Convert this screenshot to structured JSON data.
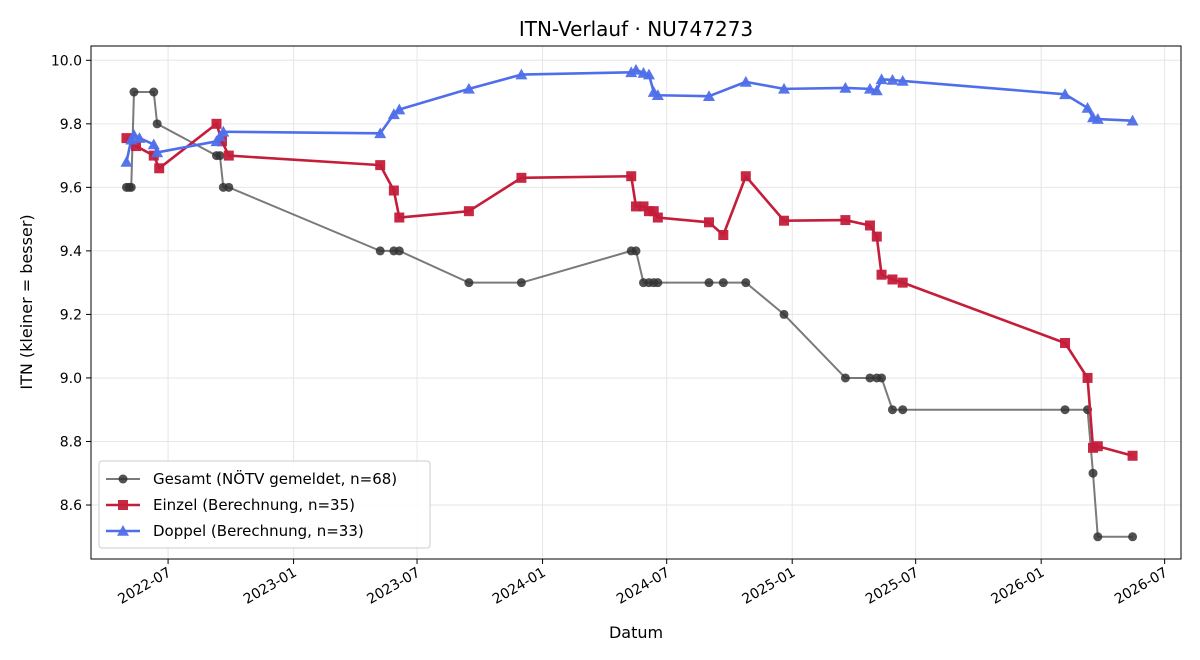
{
  "chart_data": {
    "type": "line",
    "title": "ITN-Verlauf · NU747273",
    "xlabel": "Datum",
    "ylabel": "ITN  (kleiner = besser)",
    "x_axis_type": "date",
    "xlim": [
      "2022-03-10",
      "2026-07-25"
    ],
    "ylim": [
      8.43,
      10.045
    ],
    "x_ticks": [
      "2022-07-01",
      "2023-01-01",
      "2023-07-01",
      "2024-01-01",
      "2024-07-01",
      "2025-01-01",
      "2025-07-01",
      "2026-01-01",
      "2026-07-01"
    ],
    "x_tick_labels": [
      "2022-07",
      "2023-01",
      "2023-07",
      "2024-01",
      "2024-07",
      "2025-01",
      "2025-07",
      "2026-01",
      "2026-07"
    ],
    "y_ticks": [
      8.6,
      8.8,
      9.0,
      9.2,
      9.4,
      9.6,
      9.8,
      10.0
    ],
    "y_tick_labels": [
      "8.6",
      "8.8",
      "9.0",
      "9.2",
      "9.4",
      "9.6",
      "9.8",
      "10.0"
    ],
    "grid": true,
    "legend_position": "lower-left",
    "series": [
      {
        "name": "Gesamt (NÖTV gemeldet, n=68)",
        "color": "#333333",
        "marker": "circle",
        "points": [
          [
            "2022-05-01",
            9.6
          ],
          [
            "2022-05-05",
            9.6
          ],
          [
            "2022-05-08",
            9.6
          ],
          [
            "2022-05-12",
            9.9
          ],
          [
            "2022-06-10",
            9.9
          ],
          [
            "2022-06-15",
            9.8
          ],
          [
            "2022-09-10",
            9.7
          ],
          [
            "2022-09-15",
            9.7
          ],
          [
            "2022-09-20",
            9.6
          ],
          [
            "2022-09-28",
            9.6
          ],
          [
            "2023-05-08",
            9.4
          ],
          [
            "2023-05-28",
            9.4
          ],
          [
            "2023-06-05",
            9.4
          ],
          [
            "2023-09-15",
            9.3
          ],
          [
            "2023-12-01",
            9.3
          ],
          [
            "2024-05-10",
            9.4
          ],
          [
            "2024-05-17",
            9.4
          ],
          [
            "2024-05-28",
            9.3
          ],
          [
            "2024-06-05",
            9.3
          ],
          [
            "2024-06-12",
            9.3
          ],
          [
            "2024-06-18",
            9.3
          ],
          [
            "2024-09-01",
            9.3
          ],
          [
            "2024-09-22",
            9.3
          ],
          [
            "2024-10-25",
            9.3
          ],
          [
            "2024-12-20",
            9.2
          ],
          [
            "2025-03-20",
            9.0
          ],
          [
            "2025-04-25",
            9.0
          ],
          [
            "2025-05-05",
            9.0
          ],
          [
            "2025-05-12",
            9.0
          ],
          [
            "2025-05-28",
            8.9
          ],
          [
            "2025-06-12",
            8.9
          ],
          [
            "2026-02-05",
            8.9
          ],
          [
            "2026-03-10",
            8.9
          ],
          [
            "2026-03-18",
            8.7
          ],
          [
            "2026-03-25",
            8.5
          ],
          [
            "2026-05-15",
            8.5
          ]
        ]
      },
      {
        "name": "Einzel (Berechnung, n=35)",
        "color": "#c41e3a",
        "marker": "square",
        "points": [
          [
            "2022-05-01",
            9.755
          ],
          [
            "2022-05-15",
            9.73
          ],
          [
            "2022-06-10",
            9.7
          ],
          [
            "2022-06-18",
            9.66
          ],
          [
            "2022-09-10",
            9.8
          ],
          [
            "2022-09-18",
            9.745
          ],
          [
            "2022-09-28",
            9.7
          ],
          [
            "2023-05-08",
            9.67
          ],
          [
            "2023-05-28",
            9.59
          ],
          [
            "2023-06-05",
            9.505
          ],
          [
            "2023-09-15",
            9.525
          ],
          [
            "2023-12-01",
            9.63
          ],
          [
            "2024-05-10",
            9.635
          ],
          [
            "2024-05-17",
            9.54
          ],
          [
            "2024-05-28",
            9.54
          ],
          [
            "2024-06-05",
            9.525
          ],
          [
            "2024-06-12",
            9.525
          ],
          [
            "2024-06-18",
            9.505
          ],
          [
            "2024-09-01",
            9.49
          ],
          [
            "2024-09-22",
            9.45
          ],
          [
            "2024-10-25",
            9.635
          ],
          [
            "2024-12-20",
            9.495
          ],
          [
            "2025-03-20",
            9.497
          ],
          [
            "2025-04-25",
            9.48
          ],
          [
            "2025-05-05",
            9.445
          ],
          [
            "2025-05-12",
            9.325
          ],
          [
            "2025-05-28",
            9.31
          ],
          [
            "2025-06-12",
            9.3
          ],
          [
            "2026-02-05",
            9.11
          ],
          [
            "2026-03-10",
            9.0
          ],
          [
            "2026-03-18",
            8.78
          ],
          [
            "2026-03-25",
            8.785
          ],
          [
            "2026-05-15",
            8.755
          ]
        ]
      },
      {
        "name": "Doppel (Berechnung, n=33)",
        "color": "#4f6fea",
        "marker": "triangle",
        "points": [
          [
            "2022-05-01",
            9.68
          ],
          [
            "2022-05-08",
            9.75
          ],
          [
            "2022-05-12",
            9.765
          ],
          [
            "2022-05-20",
            9.755
          ],
          [
            "2022-06-10",
            9.735
          ],
          [
            "2022-06-15",
            9.71
          ],
          [
            "2022-09-10",
            9.745
          ],
          [
            "2022-09-15",
            9.76
          ],
          [
            "2022-09-20",
            9.775
          ],
          [
            "2023-05-08",
            9.77
          ],
          [
            "2023-05-28",
            9.83
          ],
          [
            "2023-06-05",
            9.845
          ],
          [
            "2023-09-15",
            9.91
          ],
          [
            "2023-12-01",
            9.955
          ],
          [
            "2024-05-10",
            9.962
          ],
          [
            "2024-05-17",
            9.97
          ],
          [
            "2024-05-28",
            9.96
          ],
          [
            "2024-06-05",
            9.955
          ],
          [
            "2024-06-12",
            9.9
          ],
          [
            "2024-06-18",
            9.89
          ],
          [
            "2024-09-01",
            9.887
          ],
          [
            "2024-10-25",
            9.932
          ],
          [
            "2024-12-20",
            9.91
          ],
          [
            "2025-03-20",
            9.913
          ],
          [
            "2025-04-25",
            9.91
          ],
          [
            "2025-05-05",
            9.905
          ],
          [
            "2025-05-12",
            9.94
          ],
          [
            "2025-05-28",
            9.938
          ],
          [
            "2025-06-12",
            9.935
          ],
          [
            "2026-02-05",
            9.893
          ],
          [
            "2026-03-10",
            9.85
          ],
          [
            "2026-03-18",
            9.82
          ],
          [
            "2026-03-25",
            9.815
          ],
          [
            "2026-05-15",
            9.81
          ]
        ]
      }
    ]
  }
}
